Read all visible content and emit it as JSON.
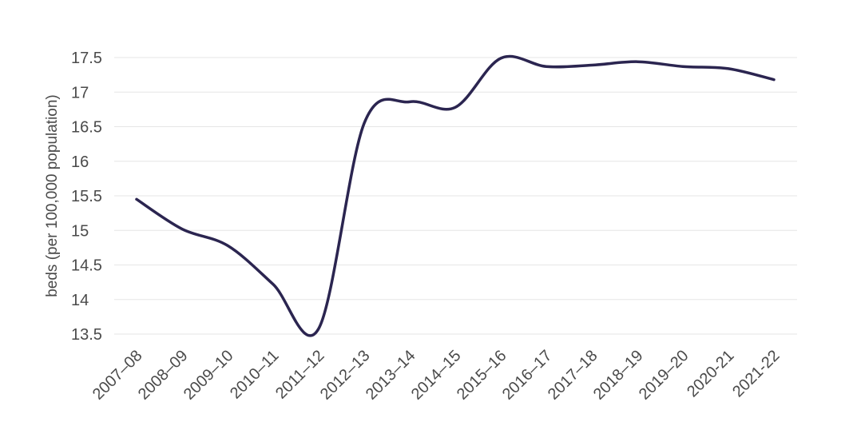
{
  "chart_data": {
    "type": "line",
    "title": "",
    "xlabel": "",
    "ylabel": "beds (per 100,000 population)",
    "categories": [
      "2007–08",
      "2008–09",
      "2009–10",
      "2010–11",
      "2011–12",
      "2012–13",
      "2013–14",
      "2014–15",
      "2015–16",
      "2016–17",
      "2017–18",
      "2018–19",
      "2019–20",
      "2020-21",
      "2021-22"
    ],
    "y_ticks": [
      "13.5",
      "14",
      "14.5",
      "15",
      "15.5",
      "16",
      "16.5",
      "17",
      "17.5"
    ],
    "ylim": [
      13.5,
      17.5
    ],
    "grid": "horizontal",
    "legend": "none",
    "series": [
      {
        "values": [
          15.45,
          15.02,
          14.78,
          14.22,
          13.58,
          16.55,
          16.86,
          16.78,
          17.49,
          17.37,
          17.39,
          17.44,
          17.37,
          17.34,
          17.18
        ],
        "color": "#2b2550"
      }
    ]
  }
}
